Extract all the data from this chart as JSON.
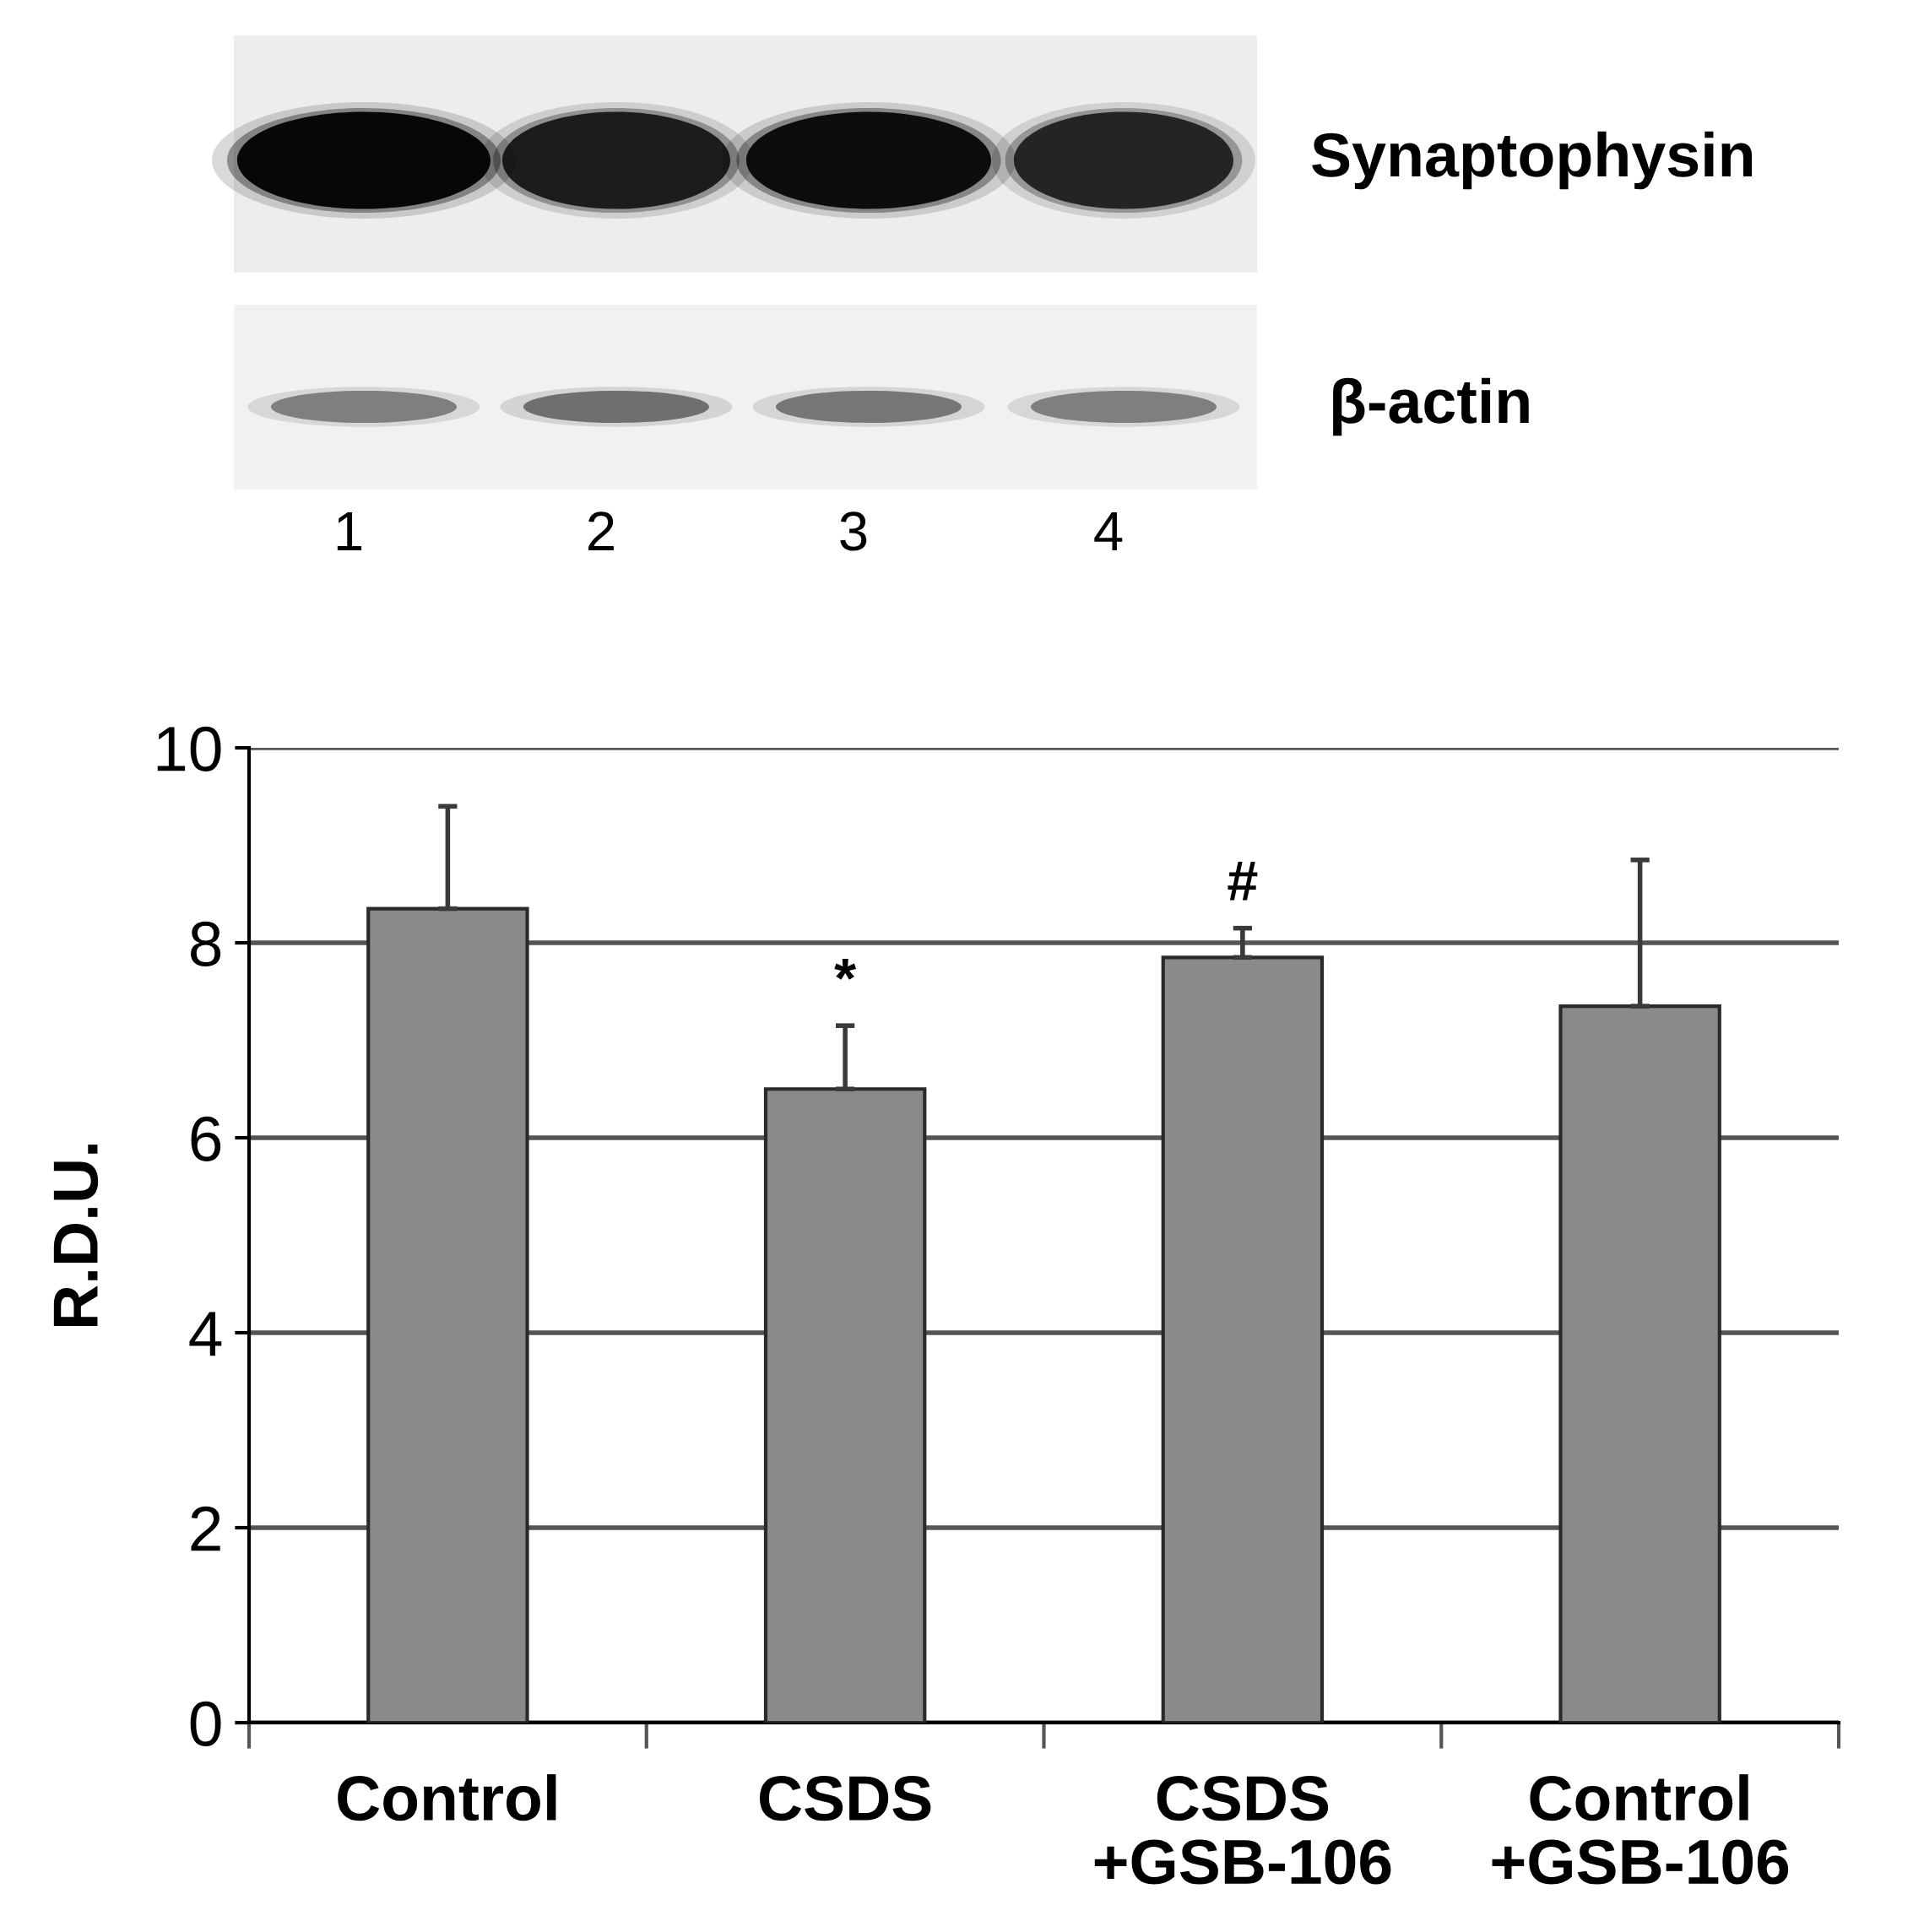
{
  "chart_data": {
    "type": "bar",
    "categories": [
      "Control",
      "CSDS",
      "CSDS\n+GSB-106",
      "Control\n+GSB-106"
    ],
    "values": [
      8.35,
      6.5,
      7.85,
      7.35
    ],
    "errors": [
      [
        8.35,
        9.4
      ],
      [
        6.5,
        7.15
      ],
      [
        7.85,
        8.15
      ],
      [
        7.35,
        8.85
      ]
    ],
    "color": "#8a8a8a",
    "ylabel": "R.D.U.",
    "ylim": [
      0,
      10
    ],
    "yticks": [
      0,
      2,
      4,
      6,
      8,
      10
    ],
    "grid": "y",
    "annotations": [
      "Synaptophysin",
      "β-actin",
      "1",
      "2",
      "3",
      "4",
      "*",
      "#"
    ]
  }
}
